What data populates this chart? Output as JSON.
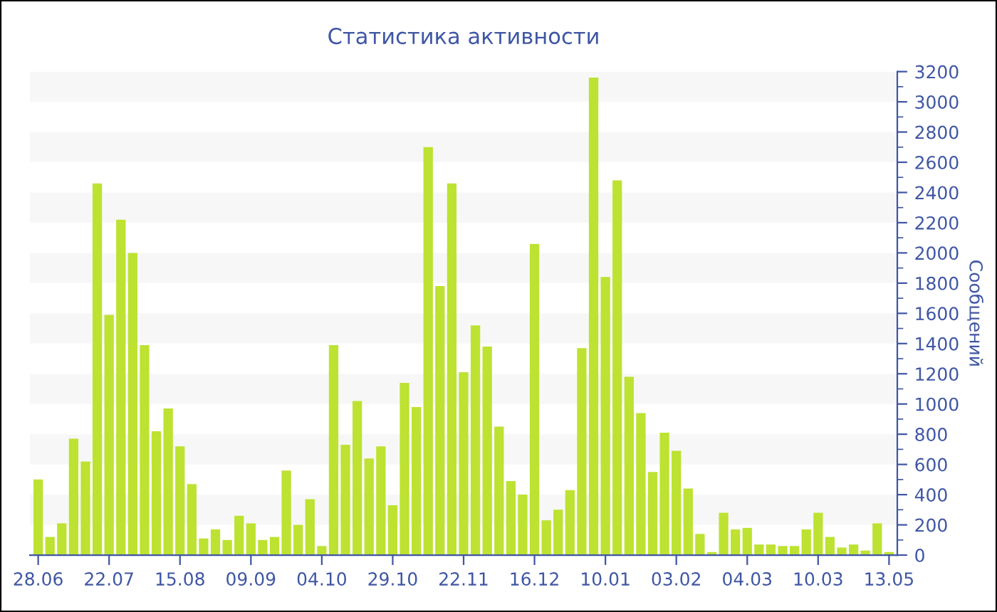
{
  "chart_data": {
    "type": "bar",
    "title": "Статистика активности",
    "ylabel": "Сообщений",
    "categories": [
      "28.06",
      null,
      null,
      null,
      null,
      null,
      "22.07",
      null,
      null,
      null,
      null,
      null,
      "15.08",
      null,
      null,
      null,
      null,
      null,
      "09.09",
      null,
      null,
      null,
      null,
      null,
      "04.10",
      null,
      null,
      null,
      null,
      null,
      "29.10",
      null,
      null,
      null,
      null,
      null,
      "22.11",
      null,
      null,
      null,
      null,
      null,
      "16.12",
      null,
      null,
      null,
      null,
      null,
      "10.01",
      null,
      null,
      null,
      null,
      null,
      "03.02",
      null,
      null,
      null,
      null,
      null,
      "04.03",
      null,
      null,
      null,
      null,
      null,
      "10.03",
      null,
      null,
      null,
      null,
      null,
      "13.05"
    ],
    "values": [
      500,
      120,
      210,
      770,
      620,
      2460,
      1590,
      2220,
      2000,
      1390,
      820,
      970,
      720,
      470,
      110,
      170,
      100,
      260,
      210,
      100,
      120,
      560,
      200,
      370,
      60,
      1390,
      730,
      1020,
      640,
      720,
      330,
      1140,
      980,
      2700,
      1780,
      2460,
      1210,
      1520,
      1380,
      850,
      490,
      400,
      2060,
      230,
      300,
      430,
      1370,
      3160,
      1840,
      2480,
      1180,
      940,
      550,
      810,
      690,
      440,
      140,
      20,
      280,
      170,
      180,
      70,
      70,
      60,
      60,
      170,
      280,
      120,
      50,
      70,
      30,
      210,
      20
    ],
    "color": "#bde231",
    "ylim": [
      0,
      3200
    ],
    "yticks": [
      0,
      200,
      400,
      600,
      800,
      1000,
      1200,
      1400,
      1600,
      1800,
      2000,
      2200,
      2400,
      2600,
      2800,
      3000,
      3200
    ],
    "bands": [
      {
        "axis": "y",
        "from": 200,
        "to": 400,
        "color": "#f7f7f7"
      },
      {
        "axis": "y",
        "from": 600,
        "to": 800,
        "color": "#f7f7f7"
      },
      {
        "axis": "y",
        "from": 1000,
        "to": 1200,
        "color": "#f7f7f7"
      },
      {
        "axis": "y",
        "from": 1400,
        "to": 1600,
        "color": "#f7f7f7"
      },
      {
        "axis": "y",
        "from": 1800,
        "to": 2000,
        "color": "#f7f7f7"
      },
      {
        "axis": "y",
        "from": 2200,
        "to": 2400,
        "color": "#f7f7f7"
      },
      {
        "axis": "y",
        "from": 2600,
        "to": 2800,
        "color": "#f7f7f7"
      },
      {
        "axis": "y",
        "from": 3000,
        "to": 3200,
        "color": "#f7f7f7"
      }
    ],
    "grid": false,
    "legend": false
  }
}
